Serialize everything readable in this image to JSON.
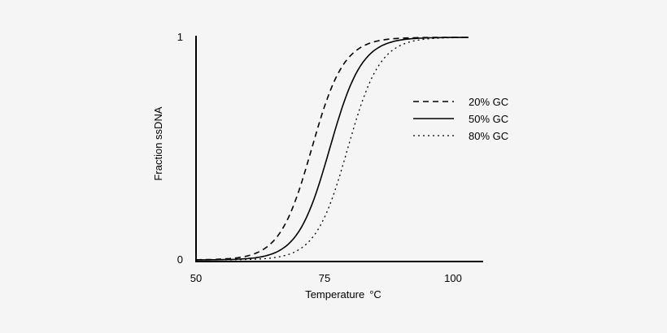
{
  "chart_data": {
    "type": "line",
    "title": "",
    "xlabel": "Temperature",
    "xlabel_unit": "°C",
    "ylabel": "Fraction ssDNA",
    "xlim": [
      50,
      106
    ],
    "ylim": [
      0,
      1
    ],
    "xticks": [
      {
        "value": 50,
        "label": "50"
      },
      {
        "value": 75,
        "label": "75"
      },
      {
        "value": 100,
        "label": "100"
      }
    ],
    "yticks": [
      {
        "value": 0,
        "label": "0"
      },
      {
        "value": 1,
        "label": "1"
      }
    ],
    "legend_position": "right",
    "series": [
      {
        "name": "20% GC",
        "style": "dashed",
        "color": "#000000",
        "tm": 72.5,
        "k": 0.32,
        "x": [
          50,
          55,
          60,
          65,
          68,
          70,
          72,
          72.5,
          74,
          76,
          78,
          80,
          85,
          90,
          100,
          103
        ],
        "y": [
          0.01,
          0.03,
          0.07,
          0.16,
          0.28,
          0.39,
          0.47,
          0.5,
          0.62,
          0.76,
          0.85,
          0.91,
          0.97,
          0.99,
          1.0,
          1.0
        ]
      },
      {
        "name": "50% GC",
        "style": "solid",
        "color": "#000000",
        "tm": 76,
        "k": 0.32,
        "x": [
          50,
          55,
          60,
          65,
          70,
          73,
          75,
          76,
          78,
          80,
          82,
          85,
          90,
          100,
          103
        ],
        "y": [
          0.0,
          0.01,
          0.02,
          0.05,
          0.13,
          0.28,
          0.42,
          0.5,
          0.65,
          0.78,
          0.87,
          0.94,
          0.98,
          1.0,
          1.0
        ]
      },
      {
        "name": "80% GC",
        "style": "dotted",
        "color": "#000000",
        "tm": 79.5,
        "k": 0.32,
        "x": [
          50,
          55,
          60,
          65,
          70,
          75,
          78,
          79.5,
          81,
          83,
          85,
          88,
          92,
          100,
          103
        ],
        "y": [
          0.0,
          0.0,
          0.01,
          0.02,
          0.05,
          0.18,
          0.38,
          0.5,
          0.62,
          0.76,
          0.85,
          0.93,
          0.97,
          0.99,
          1.0
        ]
      }
    ]
  }
}
